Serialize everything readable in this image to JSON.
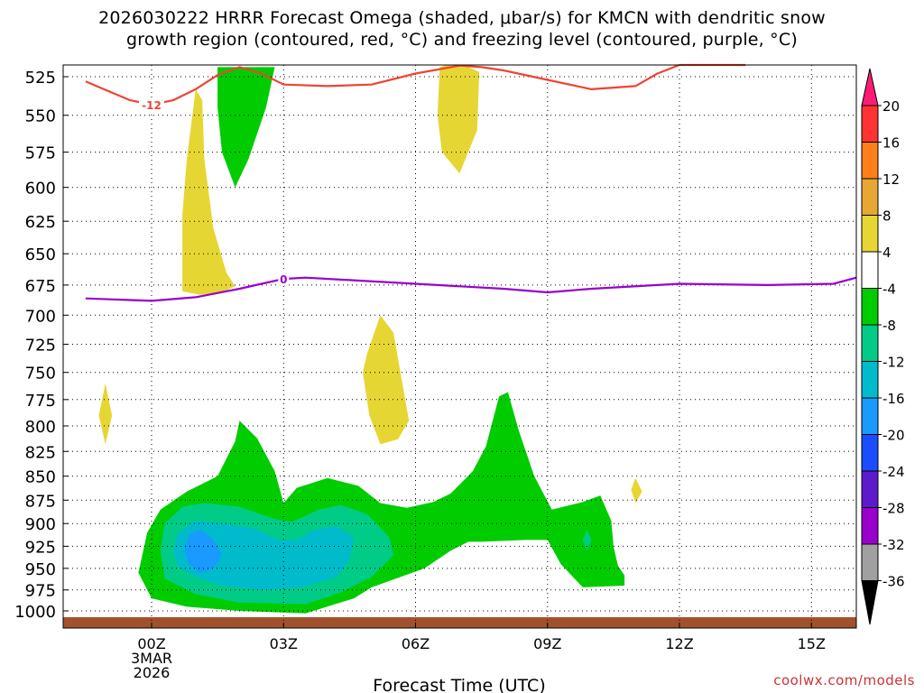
{
  "title_lines": [
    "2026030222 HRRR Forecast Omega (shaded, μbar/s) for KMCN with dendritic snow",
    "growth region (contoured, red, °C) and freezing level (contoured, purple, °C)"
  ],
  "credit": "coolwx.com/models",
  "chart_data": {
    "type": "contour",
    "xlabel": "Forecast Time (UTC)",
    "ylabel": "",
    "x_range_hours": [
      -1.5,
      16.5
    ],
    "y_levels_hPa": [
      525,
      550,
      575,
      600,
      625,
      650,
      675,
      700,
      725,
      750,
      775,
      800,
      825,
      850,
      875,
      900,
      925,
      950,
      975,
      1000
    ],
    "x_ticks": [
      {
        "hour": 0,
        "lines": [
          "00Z",
          "3MAR",
          "2026"
        ]
      },
      {
        "hour": 3,
        "lines": [
          "03Z"
        ]
      },
      {
        "hour": 6,
        "lines": [
          "06Z"
        ]
      },
      {
        "hour": 9,
        "lines": [
          "09Z"
        ]
      },
      {
        "hour": 12,
        "lines": [
          "12Z"
        ]
      },
      {
        "hour": 15,
        "lines": [
          "15Z"
        ]
      }
    ],
    "colorbar": {
      "labels": [
        "20",
        "16",
        "12",
        "8",
        "4",
        "-4",
        "-8",
        "-12",
        "-16",
        "-20",
        "-24",
        "-28",
        "-32",
        "-36"
      ],
      "colors": [
        "#ff1a75",
        "#ff3333",
        "#ff7f1a",
        "#e6a833",
        "#e6d633",
        "#ffffff",
        "#00cc00",
        "#00cc88",
        "#00bbcc",
        "#1a99ff",
        "#1a4dff",
        "#5c1acc",
        "#9900cc",
        "#a0a0a0",
        "#000000"
      ]
    },
    "contours": [
      {
        "color": "#ee4433",
        "label": "-12",
        "points": [
          [
            -1.5,
            528
          ],
          [
            -1.0,
            534
          ],
          [
            -0.5,
            540
          ],
          [
            0,
            543
          ],
          [
            0.5,
            540
          ],
          [
            1.0,
            533
          ],
          [
            1.5,
            524
          ],
          [
            2.0,
            519
          ],
          [
            2.5,
            523
          ],
          [
            3.0,
            530
          ],
          [
            4.0,
            531
          ],
          [
            5.0,
            530
          ],
          [
            6.0,
            523
          ],
          [
            7.0,
            518
          ],
          [
            7.5,
            519
          ],
          [
            8.0,
            521
          ],
          [
            9.0,
            527
          ],
          [
            10.0,
            533
          ],
          [
            11.0,
            531
          ],
          [
            11.5,
            523
          ],
          [
            12.0,
            516
          ],
          [
            13.0,
            510
          ],
          [
            13.5,
            508
          ]
        ]
      },
      {
        "color": "#9900cc",
        "label": "0",
        "points": [
          [
            -1.5,
            686
          ],
          [
            0,
            688
          ],
          [
            1.0,
            685
          ],
          [
            2.0,
            678
          ],
          [
            2.5,
            674
          ],
          [
            3.0,
            670
          ],
          [
            3.5,
            669
          ],
          [
            4.5,
            671
          ],
          [
            6.0,
            674
          ],
          [
            8.0,
            678
          ],
          [
            9.0,
            681
          ],
          [
            10.0,
            678
          ],
          [
            12.0,
            674
          ],
          [
            14.0,
            675
          ],
          [
            15.5,
            674
          ],
          [
            16.5,
            669
          ]
        ]
      }
    ],
    "shaded_regions": [
      {
        "value_range": "4 to 8",
        "color": "#e6d633",
        "points": [
          [
            0.7,
            680
          ],
          [
            0.7,
            620
          ],
          [
            0.8,
            580
          ],
          [
            0.95,
            545
          ],
          [
            1.0,
            533
          ],
          [
            1.15,
            540
          ],
          [
            1.2,
            580
          ],
          [
            1.4,
            630
          ],
          [
            1.7,
            665
          ],
          [
            1.9,
            676
          ],
          [
            1.6,
            681
          ],
          [
            1.1,
            683
          ]
        ]
      },
      {
        "value_range": "4 to 8",
        "color": "#e6d633",
        "points": [
          [
            6.55,
            519
          ],
          [
            6.7,
            517
          ],
          [
            7.1,
            517
          ],
          [
            7.45,
            522
          ],
          [
            7.4,
            560
          ],
          [
            7.0,
            590
          ],
          [
            6.6,
            575
          ],
          [
            6.5,
            550
          ]
        ]
      },
      {
        "value_range": "4 to 8",
        "color": "#e6d633",
        "points": [
          [
            4.9,
            733
          ],
          [
            5.2,
            700
          ],
          [
            5.5,
            715
          ],
          [
            5.7,
            760
          ],
          [
            5.85,
            795
          ],
          [
            5.6,
            813
          ],
          [
            5.2,
            818
          ],
          [
            4.95,
            790
          ],
          [
            4.8,
            750
          ]
        ]
      },
      {
        "value_range": "4 to 8",
        "color": "#e6d633",
        "points": [
          [
            -1.2,
            790
          ],
          [
            -1.05,
            760
          ],
          [
            -0.9,
            790
          ],
          [
            -1.05,
            818
          ]
        ]
      },
      {
        "value_range": "4 to 8",
        "color": "#e6d633",
        "points": [
          [
            10.9,
            864
          ],
          [
            11.0,
            852
          ],
          [
            11.15,
            866
          ],
          [
            11.0,
            878
          ]
        ]
      },
      {
        "value_range": "-4 to -8",
        "color": "#00cc00",
        "points": [
          [
            1.5,
            519
          ],
          [
            2.8,
            519
          ],
          [
            2.6,
            545
          ],
          [
            2.2,
            580
          ],
          [
            1.9,
            600
          ],
          [
            1.6,
            575
          ],
          [
            1.5,
            545
          ]
        ]
      },
      {
        "value_range": "-4 to -8",
        "color": "#00cc00",
        "points": [
          [
            -0.3,
            955
          ],
          [
            -0.1,
            910
          ],
          [
            0.2,
            885
          ],
          [
            0.8,
            866
          ],
          [
            1.5,
            850
          ],
          [
            1.9,
            815
          ],
          [
            2.0,
            795
          ],
          [
            2.4,
            812
          ],
          [
            2.8,
            845
          ],
          [
            3.0,
            878
          ],
          [
            3.3,
            862
          ],
          [
            4.0,
            852
          ],
          [
            4.7,
            860
          ],
          [
            5.2,
            878
          ],
          [
            5.8,
            883
          ],
          [
            6.4,
            877
          ],
          [
            6.8,
            868
          ],
          [
            7.3,
            845
          ],
          [
            7.6,
            820
          ],
          [
            7.9,
            772
          ],
          [
            8.1,
            768
          ],
          [
            8.35,
            805
          ],
          [
            8.7,
            850
          ],
          [
            9.1,
            885
          ],
          [
            9.8,
            877
          ],
          [
            10.2,
            870
          ],
          [
            10.45,
            897
          ],
          [
            10.5,
            925
          ],
          [
            10.6,
            947
          ],
          [
            10.75,
            958
          ],
          [
            10.75,
            970
          ],
          [
            9.8,
            972
          ],
          [
            9.3,
            945
          ],
          [
            9.0,
            918
          ],
          [
            8.5,
            918
          ],
          [
            7.5,
            920
          ],
          [
            7.2,
            920
          ],
          [
            6.8,
            930
          ],
          [
            6.2,
            950
          ],
          [
            5.0,
            972
          ],
          [
            4.6,
            985
          ],
          [
            3.5,
            1003
          ],
          [
            2.0,
            1000
          ],
          [
            0.8,
            995
          ],
          [
            0.0,
            985
          ]
        ]
      },
      {
        "value_range": "-8 to -12",
        "color": "#00cc88",
        "points": [
          [
            0.2,
            930
          ],
          [
            0.3,
            900
          ],
          [
            0.7,
            882
          ],
          [
            1.2,
            878
          ],
          [
            2.0,
            882
          ],
          [
            2.8,
            895
          ],
          [
            3.2,
            898
          ],
          [
            3.8,
            885
          ],
          [
            4.3,
            880
          ],
          [
            4.9,
            890
          ],
          [
            5.4,
            915
          ],
          [
            5.5,
            935
          ],
          [
            5.0,
            960
          ],
          [
            4.3,
            978
          ],
          [
            3.5,
            992
          ],
          [
            2.0,
            990
          ],
          [
            1.0,
            980
          ],
          [
            0.3,
            962
          ]
        ]
      },
      {
        "value_range": "-8 to -12",
        "color": "#00cc88",
        "points": [
          [
            9.8,
            918
          ],
          [
            9.9,
            907
          ],
          [
            10.0,
            918
          ],
          [
            9.9,
            930
          ]
        ]
      },
      {
        "value_range": "-12 to -16",
        "color": "#00bbcc",
        "points": [
          [
            0.5,
            930
          ],
          [
            0.6,
            910
          ],
          [
            1.0,
            897
          ],
          [
            1.6,
            900
          ],
          [
            2.3,
            905
          ],
          [
            2.9,
            918
          ],
          [
            3.3,
            918
          ],
          [
            3.7,
            907
          ],
          [
            4.2,
            903
          ],
          [
            4.6,
            915
          ],
          [
            4.5,
            940
          ],
          [
            4.2,
            960
          ],
          [
            3.4,
            972
          ],
          [
            2.5,
            975
          ],
          [
            1.6,
            970
          ],
          [
            1.0,
            960
          ],
          [
            0.6,
            948
          ]
        ]
      },
      {
        "value_range": "-16 to -20",
        "color": "#1a99ff",
        "points": [
          [
            0.75,
            930
          ],
          [
            0.85,
            912
          ],
          [
            1.1,
            907
          ],
          [
            1.4,
            917
          ],
          [
            1.6,
            935
          ],
          [
            1.4,
            950
          ],
          [
            1.1,
            955
          ],
          [
            0.85,
            945
          ]
        ]
      }
    ]
  }
}
